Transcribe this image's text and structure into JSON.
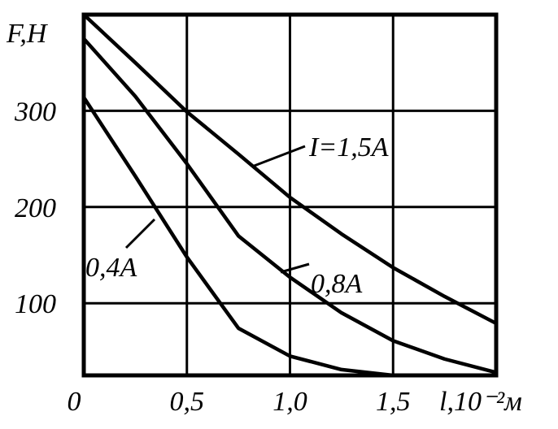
{
  "chart_data": {
    "type": "line",
    "y_label": "F,H",
    "x_label": "l,10⁻²м",
    "xlim": [
      0,
      2
    ],
    "ylim": [
      25,
      400
    ],
    "xticks": [
      {
        "value": 0,
        "label": "0"
      },
      {
        "value": 0.5,
        "label": "0,5"
      },
      {
        "value": 1.0,
        "label": "1,0"
      },
      {
        "value": 1.5,
        "label": "1,5"
      }
    ],
    "yticks": [
      100,
      200,
      300
    ],
    "grid": true,
    "series": [
      {
        "name": "I=1,5A",
        "color": "#000000",
        "x": [
          0,
          0.25,
          0.5,
          0.75,
          1.0,
          1.25,
          1.5,
          1.75,
          2.0
        ],
        "values": [
          400,
          350,
          299,
          255,
          210,
          172,
          137,
          107,
          79
        ]
      },
      {
        "name": "0,8A",
        "color": "#000000",
        "x": [
          0,
          0.25,
          0.5,
          0.75,
          1.0,
          1.25,
          1.5,
          1.75,
          2.0
        ],
        "values": [
          375,
          315,
          245,
          170,
          127,
          90,
          61,
          42,
          28
        ]
      },
      {
        "name": "0,4A",
        "color": "#000000",
        "x": [
          0,
          0.25,
          0.5,
          0.75,
          1.0,
          1.25,
          1.5
        ],
        "values": [
          314,
          232,
          148,
          74,
          45,
          31,
          25
        ]
      }
    ]
  }
}
